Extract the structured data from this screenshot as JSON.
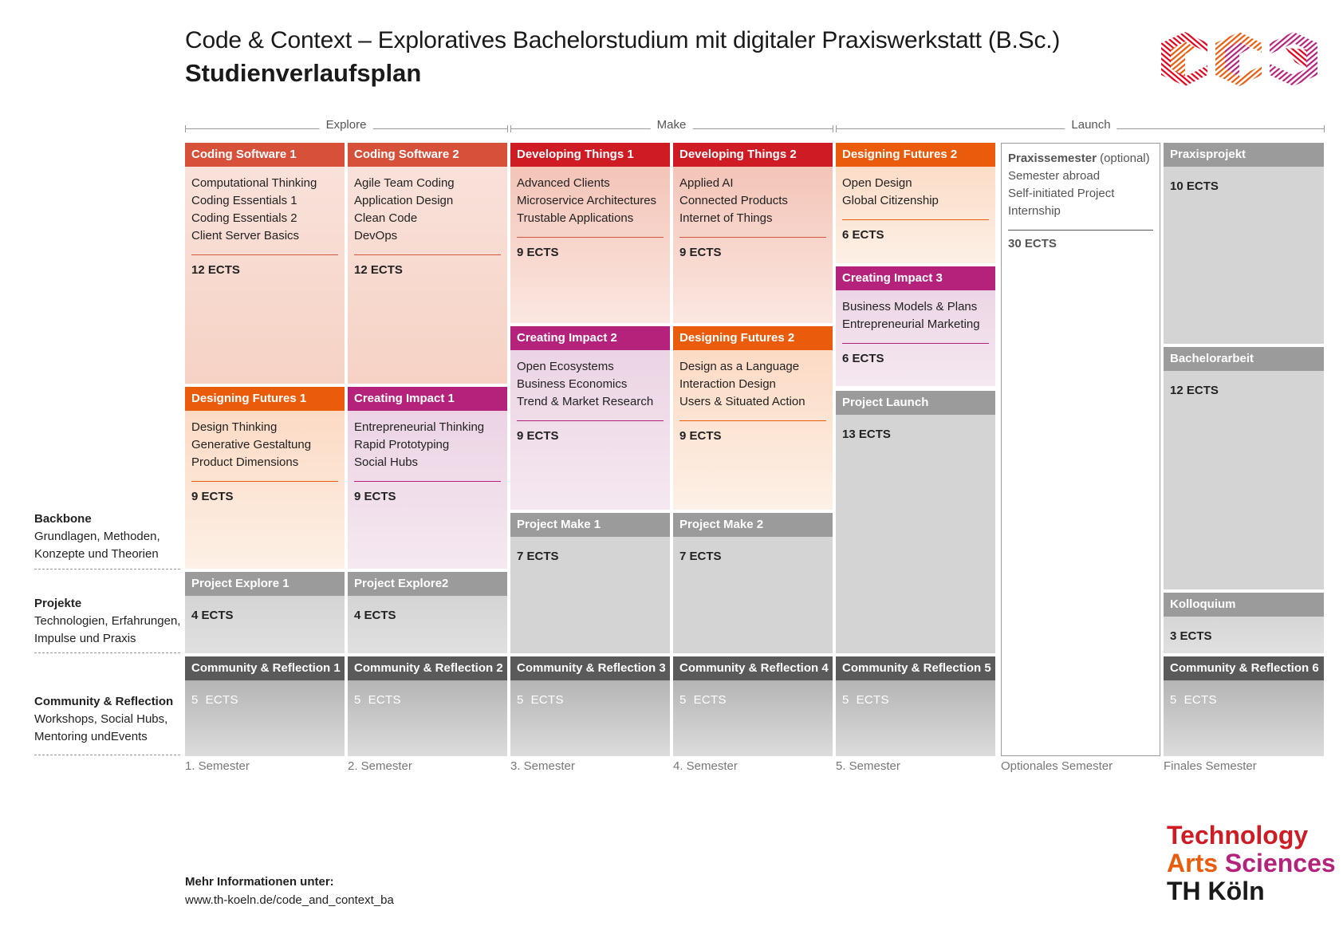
{
  "header": {
    "title": "Code & Context – Exploratives Bachelorstudium mit digitaler Praxiswerkstatt (B.Sc.)",
    "subtitle": "Studienverlaufsplan"
  },
  "logo": {
    "icon": "cc-cube-logo-icon",
    "colors": [
      "#e2001a",
      "#ea5b0c",
      "#b5227c"
    ]
  },
  "phases": {
    "explore": "Explore",
    "make": "Make",
    "launch": "Launch"
  },
  "sidebar": {
    "backbone": {
      "title": "Backbone",
      "lines": [
        "Grundlagen, Methoden,",
        "Konzepte und Theorien"
      ]
    },
    "projekte": {
      "title": "Projekte",
      "lines": [
        "Technologien, Erfahrungen,",
        "Impulse und Praxis"
      ]
    },
    "community": {
      "title": "Community & Reflection",
      "lines": [
        "Workshops, Social Hubs,",
        "Mentoring undEvents"
      ]
    }
  },
  "modules": {
    "cs1": {
      "title": "Coding Software 1",
      "items": [
        "Computational Thinking",
        "Coding Essentials 1",
        "Coding Essentials 2",
        "Client Server Basics"
      ],
      "ects": "12 ECTS"
    },
    "cs2": {
      "title": "Coding Software 2",
      "items": [
        "Agile Team Coding",
        "Application Design",
        "Clean Code",
        "DevOps"
      ],
      "ects": "12 ECTS"
    },
    "dt1": {
      "title": "Developing Things 1",
      "items": [
        "Advanced Clients",
        "Microservice Architectures",
        "Trustable Applications"
      ],
      "ects": "9 ECTS"
    },
    "dt2": {
      "title": "Developing Things 2",
      "items": [
        "Applied AI",
        "Connected Products",
        "Internet of Things"
      ],
      "ects": "9 ECTS"
    },
    "df2a": {
      "title": "Designing Futures 2",
      "items": [
        "Open Design",
        "Global Citizenship"
      ],
      "ects": "6 ECTS"
    },
    "ci3": {
      "title": "Creating Impact 3",
      "items": [
        "Business Models & Plans",
        "Entrepreneurial Marketing"
      ],
      "ects": "6 ECTS"
    },
    "df1": {
      "title": "Designing Futures 1",
      "items": [
        "Design Thinking",
        "Generative Gestaltung",
        "Product Dimensions"
      ],
      "ects": "9 ECTS"
    },
    "ci1": {
      "title": "Creating Impact 1",
      "items": [
        "Entrepreneurial Thinking",
        "Rapid Prototyping",
        "Social Hubs"
      ],
      "ects": "9 ECTS"
    },
    "ci2": {
      "title": "Creating Impact 2",
      "items": [
        "Open Ecosystems",
        "Business Economics",
        "Trend & Market Research"
      ],
      "ects": "9 ECTS"
    },
    "df2b": {
      "title": "Designing Futures 2",
      "items": [
        "Design as a Language",
        "Interaction Design",
        "Users & Situated Action"
      ],
      "ects": "9 ECTS"
    },
    "pe1": {
      "title": "Project Explore 1",
      "ects": "4 ECTS"
    },
    "pe2": {
      "title": "Project Explore2",
      "ects": "4 ECTS"
    },
    "pm1": {
      "title": "Project Make 1",
      "ects": "7 ECTS"
    },
    "pm2": {
      "title": "Project Make 2",
      "ects": "7 ECTS"
    },
    "pl": {
      "title": "Project Launch",
      "ects": "13 ECTS"
    },
    "pp": {
      "title": "Praxisprojekt",
      "ects": "10 ECTS"
    },
    "ba": {
      "title": "Bachelorarbeit",
      "ects": "12 ECTS"
    },
    "ko": {
      "title": "Kolloquium",
      "ects": "3 ECTS"
    },
    "cr1": {
      "title": "Community & Reflection 1",
      "ects": "5  ECTS"
    },
    "cr2": {
      "title": "Community & Reflection 2",
      "ects": "5  ECTS"
    },
    "cr3": {
      "title": "Community & Reflection 3",
      "ects": "5  ECTS"
    },
    "cr4": {
      "title": "Community & Reflection 4",
      "ects": "5  ECTS"
    },
    "cr5": {
      "title": "Community & Reflection 5",
      "ects": "5  ECTS"
    },
    "cr6": {
      "title": "Community & Reflection 6",
      "ects": "5  ECTS"
    }
  },
  "praxissemester": {
    "title": "Praxissemester",
    "optional": " (optional)",
    "items": [
      "Semester abroad",
      "Self-initiated Project",
      "Internship"
    ],
    "ects": "30 ECTS"
  },
  "semesters": [
    "1. Semester",
    "2. Semester",
    "3. Semester",
    "4. Semester",
    "5. Semester",
    "Optionales Semester",
    "Finales Semester"
  ],
  "footer": {
    "info_label": "Mehr Informationen unter:",
    "url": "www.th-koeln.de/code_and_context_ba"
  },
  "brand": {
    "line1": "Technology",
    "line2a": "Arts",
    "line2b": "Sciences",
    "line3": "TH Köln",
    "colors": {
      "technology": "#cf1b23",
      "arts": "#ea5b0c",
      "sciences": "#b5227c",
      "thkoeln": "#1a1a1a"
    }
  }
}
